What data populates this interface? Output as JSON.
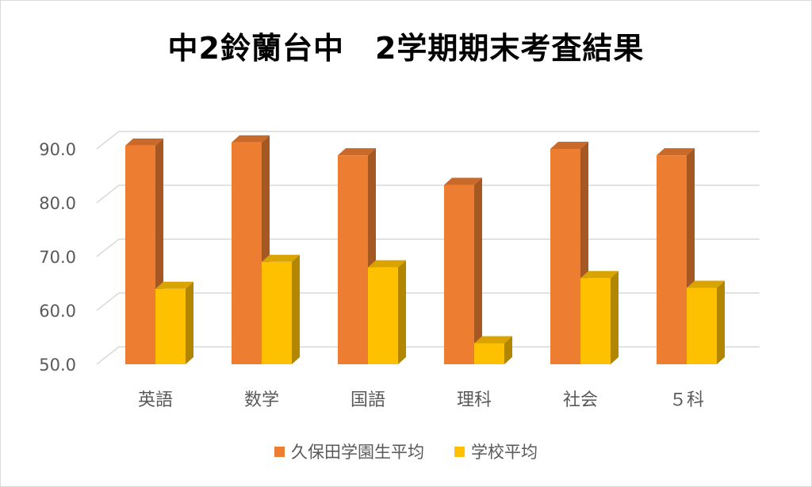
{
  "chart_data": {
    "type": "bar",
    "title": "中2鈴蘭台中　2学期期末考査結果",
    "categories": [
      "英語",
      "数学",
      "国語",
      "理科",
      "社会",
      "５科"
    ],
    "series": [
      {
        "name": "久保田学園生平均",
        "values": [
          90.6,
          91.2,
          88.8,
          83.3,
          90.0,
          88.8
        ],
        "color": "#ED7D31"
      },
      {
        "name": "学校平均",
        "values": [
          64.0,
          69.0,
          68.0,
          53.9,
          66.0,
          64.2
        ],
        "color": "#FFC000"
      }
    ],
    "ylim": [
      50,
      90
    ],
    "yticks": [
      "50.0",
      "60.0",
      "70.0",
      "80.0",
      "90.0"
    ],
    "grid": true,
    "legend_position": "bottom",
    "style": "3d-column"
  }
}
